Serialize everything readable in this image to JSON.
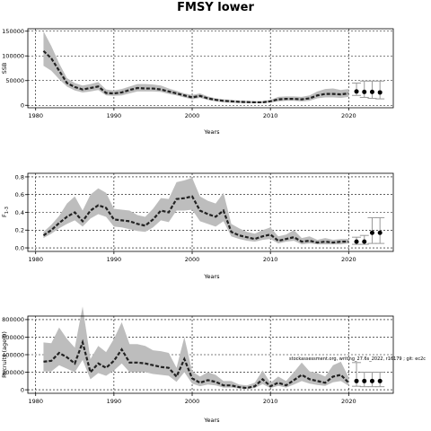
{
  "page": {
    "title": "FMSY lower"
  },
  "chart_data": [
    {
      "id": "ssb",
      "type": "area",
      "ylabel": "SSB",
      "xlabel": "Years",
      "xlim": [
        1979,
        2025.7
      ],
      "ylim": [
        -5000,
        155000
      ],
      "xticks": [
        1980,
        1990,
        2000,
        2010,
        2020
      ],
      "yticks": [
        0,
        50000,
        100000,
        150000
      ],
      "ytick_labels": [
        "0",
        "50000",
        "100000",
        "150000"
      ],
      "grid": true,
      "hist": {
        "x": [
          1981,
          1982,
          1983,
          1984,
          1985,
          1986,
          1987,
          1988,
          1989,
          1990,
          1991,
          1992,
          1993,
          1994,
          1995,
          1996,
          1997,
          1998,
          1999,
          2000,
          2001,
          2002,
          2003,
          2004,
          2005,
          2006,
          2007,
          2008,
          2009,
          2010,
          2011,
          2012,
          2013,
          2014,
          2015,
          2016,
          2017,
          2018,
          2019,
          2020
        ],
        "y": [
          110000,
          95000,
          70000,
          45000,
          37000,
          32000,
          35000,
          38000,
          25000,
          24000,
          26000,
          31000,
          35000,
          34000,
          34000,
          32000,
          28000,
          24000,
          20000,
          16000,
          19000,
          14000,
          11000,
          9000,
          8000,
          7000,
          6500,
          6000,
          6000,
          8000,
          12000,
          13000,
          13000,
          12000,
          14000,
          20000,
          23000,
          23000,
          22000,
          24000
        ],
        "lo": [
          80000,
          70000,
          53000,
          38000,
          30000,
          26000,
          28000,
          31000,
          20000,
          19000,
          20000,
          24000,
          28000,
          28000,
          28000,
          27000,
          23000,
          20000,
          16000,
          12000,
          15000,
          11000,
          8000,
          6000,
          5000,
          4500,
          4000,
          4000,
          4000,
          5500,
          8000,
          9000,
          9000,
          8000,
          9000,
          14000,
          16000,
          16000,
          15000,
          17000
        ],
        "hi": [
          150000,
          120000,
          85000,
          55000,
          45000,
          40000,
          43000,
          47000,
          32000,
          30000,
          33000,
          38000,
          43000,
          43000,
          42000,
          40000,
          34000,
          29000,
          24000,
          21000,
          24000,
          18000,
          14000,
          12000,
          11000,
          9500,
          9000,
          8500,
          8500,
          11000,
          17000,
          18000,
          18000,
          17000,
          20000,
          28000,
          33000,
          34000,
          31000,
          33000
        ]
      },
      "proj": {
        "x": [
          2021,
          2022,
          2023,
          2024
        ],
        "y": [
          28000,
          27000,
          27000,
          26000
        ],
        "lo": [
          20000,
          16000,
          14000,
          13000
        ],
        "hi": [
          45000,
          49000,
          49000,
          49000
        ]
      }
    },
    {
      "id": "f",
      "type": "area",
      "ylabel": "F",
      "ylabel_sub": "1-3",
      "xlabel": "Years",
      "xlim": [
        1979,
        2025.7
      ],
      "ylim": [
        -0.04,
        0.84
      ],
      "xticks": [
        1980,
        1990,
        2000,
        2010,
        2020
      ],
      "yticks": [
        0.0,
        0.2,
        0.4,
        0.6,
        0.8
      ],
      "ytick_labels": [
        "0.0",
        "0.2",
        "0.4",
        "0.6",
        "0.8"
      ],
      "grid": true,
      "hist": {
        "x": [
          1981,
          1982,
          1983,
          1984,
          1985,
          1986,
          1987,
          1988,
          1989,
          1990,
          1991,
          1992,
          1993,
          1994,
          1995,
          1996,
          1997,
          1998,
          1999,
          2000,
          2001,
          2002,
          2003,
          2004,
          2005,
          2006,
          2007,
          2008,
          2009,
          2010,
          2011,
          2012,
          2013,
          2014,
          2015,
          2016,
          2017,
          2018,
          2019,
          2020
        ],
        "y": [
          0.14,
          0.2,
          0.28,
          0.35,
          0.4,
          0.3,
          0.42,
          0.48,
          0.45,
          0.32,
          0.31,
          0.3,
          0.27,
          0.25,
          0.32,
          0.42,
          0.4,
          0.55,
          0.56,
          0.58,
          0.42,
          0.38,
          0.35,
          0.42,
          0.18,
          0.14,
          0.12,
          0.1,
          0.13,
          0.15,
          0.08,
          0.1,
          0.12,
          0.07,
          0.08,
          0.06,
          0.07,
          0.06,
          0.07,
          0.07
        ],
        "lo": [
          0.11,
          0.16,
          0.22,
          0.27,
          0.31,
          0.24,
          0.33,
          0.38,
          0.35,
          0.24,
          0.23,
          0.21,
          0.19,
          0.18,
          0.23,
          0.31,
          0.29,
          0.42,
          0.42,
          0.43,
          0.3,
          0.27,
          0.24,
          0.3,
          0.13,
          0.1,
          0.08,
          0.07,
          0.09,
          0.1,
          0.05,
          0.07,
          0.08,
          0.04,
          0.05,
          0.04,
          0.04,
          0.04,
          0.04,
          0.05
        ],
        "hi": [
          0.18,
          0.26,
          0.36,
          0.5,
          0.58,
          0.42,
          0.6,
          0.67,
          0.62,
          0.44,
          0.43,
          0.42,
          0.37,
          0.35,
          0.44,
          0.56,
          0.55,
          0.74,
          0.76,
          0.79,
          0.58,
          0.53,
          0.5,
          0.62,
          0.27,
          0.22,
          0.18,
          0.16,
          0.2,
          0.23,
          0.13,
          0.15,
          0.2,
          0.11,
          0.13,
          0.09,
          0.11,
          0.09,
          0.1,
          0.1
        ]
      },
      "proj": {
        "x": [
          2021,
          2022,
          2023,
          2024
        ],
        "y": [
          0.07,
          0.07,
          0.17,
          0.17
        ],
        "lo": [
          0.04,
          0.04,
          0.05,
          0.05
        ],
        "hi": [
          0.12,
          0.14,
          0.34,
          0.34
        ]
      }
    },
    {
      "id": "rec",
      "type": "area",
      "ylabel": "Recruits (age 0)",
      "xlabel": "Years",
      "xlim": [
        1979,
        2025.7
      ],
      "ylim": [
        -40000,
        840000
      ],
      "xticks": [
        1980,
        1990,
        2000,
        2010,
        2020
      ],
      "yticks": [
        0,
        200000,
        400000,
        600000,
        800000
      ],
      "ytick_labels": [
        "0",
        "200000",
        "400000",
        "600000",
        "800000"
      ],
      "grid": true,
      "annotation": "stockassessment.org, writing_27.6s_2022, r16179 ; git: ec2c",
      "hist": {
        "x": [
          1981,
          1982,
          1983,
          1984,
          1985,
          1986,
          1987,
          1988,
          1989,
          1990,
          1991,
          1992,
          1993,
          1994,
          1995,
          1996,
          1997,
          1998,
          1999,
          2000,
          2001,
          2002,
          2003,
          2004,
          2005,
          2006,
          2007,
          2008,
          2009,
          2010,
          2011,
          2012,
          2013,
          2014,
          2015,
          2016,
          2017,
          2018,
          2019,
          2020
        ],
        "y": [
          320000,
          330000,
          420000,
          370000,
          300000,
          540000,
          200000,
          300000,
          250000,
          330000,
          460000,
          310000,
          310000,
          300000,
          280000,
          260000,
          250000,
          150000,
          350000,
          130000,
          80000,
          110000,
          90000,
          50000,
          50000,
          30000,
          20000,
          40000,
          120000,
          40000,
          80000,
          50000,
          110000,
          170000,
          120000,
          100000,
          80000,
          150000,
          170000,
          80000
        ],
        "lo": [
          210000,
          210000,
          280000,
          240000,
          200000,
          340000,
          120000,
          190000,
          160000,
          220000,
          300000,
          200000,
          200000,
          200000,
          180000,
          170000,
          160000,
          90000,
          200000,
          70000,
          40000,
          60000,
          50000,
          25000,
          25000,
          15000,
          10000,
          20000,
          65000,
          20000,
          45000,
          25000,
          60000,
          100000,
          70000,
          55000,
          45000,
          85000,
          100000,
          45000
        ],
        "hi": [
          540000,
          530000,
          710000,
          580000,
          480000,
          950000,
          350000,
          500000,
          430000,
          580000,
          770000,
          520000,
          520000,
          500000,
          450000,
          440000,
          420000,
          250000,
          600000,
          210000,
          150000,
          200000,
          170000,
          100000,
          100000,
          60000,
          50000,
          80000,
          220000,
          80000,
          150000,
          100000,
          200000,
          310000,
          210000,
          190000,
          150000,
          280000,
          320000,
          140000
        ]
      },
      "proj": {
        "x": [
          2021,
          2022,
          2023,
          2024
        ],
        "y": [
          100000,
          100000,
          100000,
          100000
        ],
        "lo": [
          40000,
          35000,
          35000,
          35000
        ],
        "hi": [
          310000,
          200000,
          200000,
          200000
        ]
      }
    }
  ]
}
